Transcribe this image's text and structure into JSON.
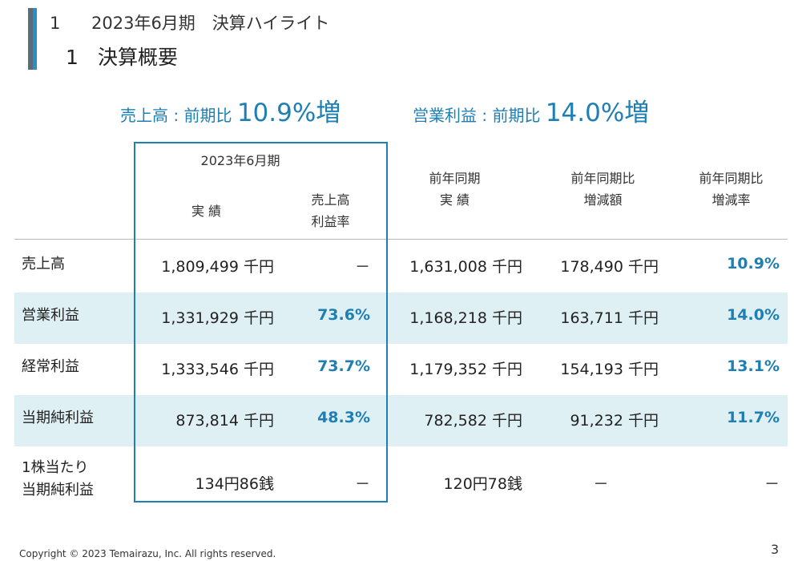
{
  "header": {
    "section_number": "1",
    "section_title": "2023年6月期　決算ハイライト",
    "subsection_number": "1",
    "subsection_title": "決算概要"
  },
  "highlights": [
    {
      "label": "売上高 : 前期比 ",
      "value": "10.9%増"
    },
    {
      "label": "営業利益 : 前期比 ",
      "value": "14.0%増"
    }
  ],
  "table": {
    "headers": {
      "period": "2023年6月期",
      "actual": "実 績",
      "margin_line1": "売上高",
      "margin_line2": "利益率",
      "prev_line1": "前年同期",
      "prev_line2": "実 績",
      "diff_line1": "前年同期比",
      "diff_line2": "増減額",
      "rate_line1": "前年同期比",
      "rate_line2": "増減率"
    },
    "rows": [
      {
        "label": "売上高",
        "actual": "1,809,499 千円",
        "margin": "－",
        "prev": "1,631,008 千円",
        "diff": "178,490 千円",
        "rate": "10.9%"
      },
      {
        "label": "営業利益",
        "actual": "1,331,929 千円",
        "margin": "73.6%",
        "prev": "1,168,218 千円",
        "diff": "163,711 千円",
        "rate": "14.0%"
      },
      {
        "label": "経常利益",
        "actual": "1,333,546 千円",
        "margin": "73.7%",
        "prev": "1,179,352 千円",
        "diff": "154,193 千円",
        "rate": "13.1%"
      },
      {
        "label": "当期純利益",
        "actual": "873,814 千円",
        "margin": "48.3%",
        "prev": "782,582 千円",
        "diff": "91,232 千円",
        "rate": "11.7%"
      },
      {
        "label_line1": "1株当たり",
        "label_line2": "当期純利益",
        "actual": "134円86銭",
        "margin": "－",
        "prev": "120円78銭",
        "diff": "－",
        "rate": "－"
      }
    ]
  },
  "footer": {
    "copyright": "Copyright © 2023 Temairazu, Inc. All rights reserved.",
    "page_number": "3"
  },
  "colors": {
    "accent": "#1e7fb4",
    "band": "#dff0f5",
    "bar_dark": "#5a6b7c"
  }
}
